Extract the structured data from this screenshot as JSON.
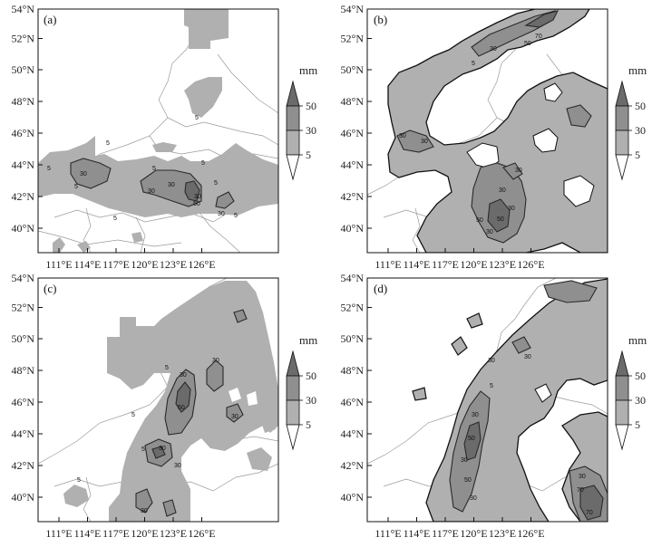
{
  "colorbar": {
    "unit": "mm",
    "levels": [
      "50",
      "30",
      "5"
    ],
    "colors": [
      "#6b6b6b",
      "#8f8f8f",
      "#b0b0b0",
      "#ffffff"
    ]
  },
  "axes": {
    "lat_labels": [
      "54°N",
      "52°N",
      "50°N",
      "48°N",
      "46°N",
      "44°N",
      "42°N",
      "40°N"
    ],
    "lon_labels": [
      "111°E",
      "114°E",
      "117°E",
      "120°E",
      "123°E",
      "126°E"
    ]
  },
  "panels": [
    {
      "id": "a",
      "label": "(a)",
      "contour_labels": [
        "5",
        "5",
        "5",
        "5",
        "5",
        "5",
        "5",
        "30",
        "30",
        "30",
        "50",
        "30",
        "30",
        "5",
        "5"
      ]
    },
    {
      "id": "b",
      "label": "(b)",
      "contour_labels": [
        "70",
        "50",
        "30",
        "5",
        "30",
        "30",
        "30",
        "30",
        "50",
        "50",
        "30",
        "30"
      ]
    },
    {
      "id": "c",
      "label": "(c)",
      "contour_labels": [
        "5",
        "30",
        "30",
        "50",
        "5",
        "30",
        "30",
        "30",
        "5",
        "30",
        "5"
      ]
    },
    {
      "id": "d",
      "label": "(d)",
      "contour_labels": [
        "5",
        "30",
        "30",
        "50",
        "30",
        "50",
        "30",
        "30",
        "70",
        "70",
        "30"
      ]
    }
  ]
}
